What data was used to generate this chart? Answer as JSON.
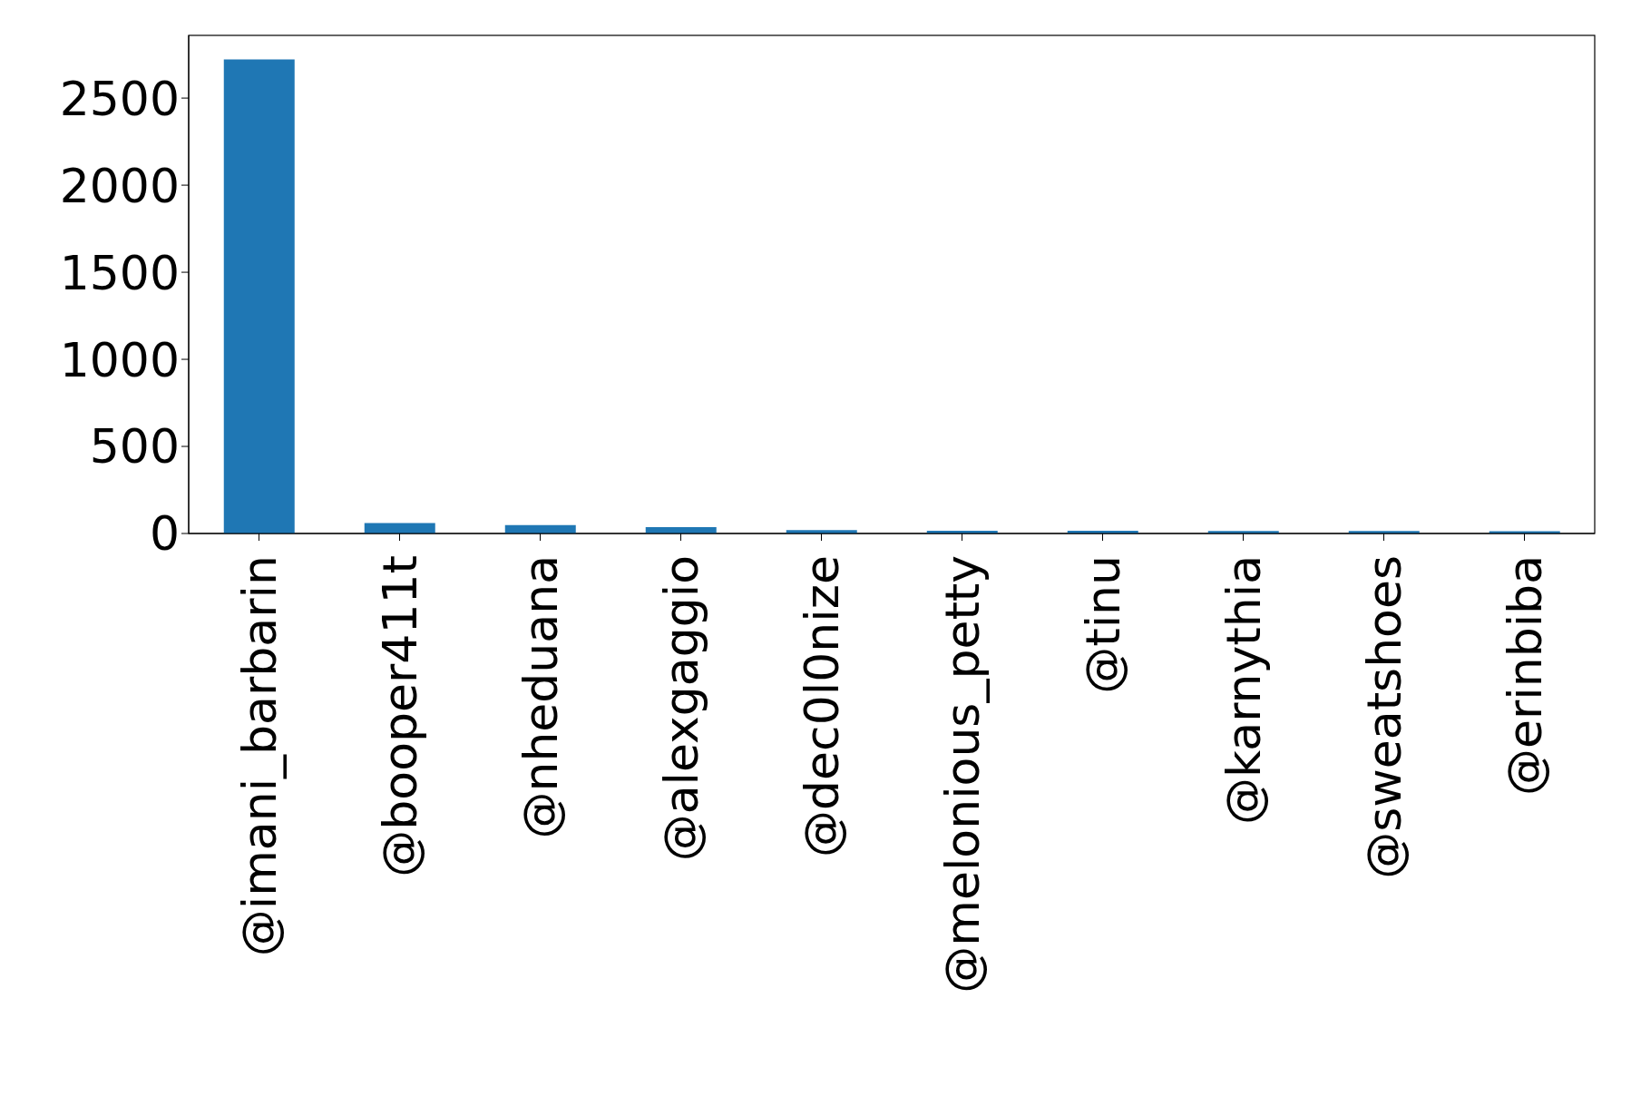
{
  "chart_data": {
    "type": "bar",
    "categories": [
      "@imani_barbarin",
      "@booper411t",
      "@nheduana",
      "@alexgaggio",
      "@dec0l0nize",
      "@melonious_petty",
      "@tinu",
      "@karnythia",
      "@sweatshoes",
      "@erinbiba"
    ],
    "values": [
      2722,
      60,
      48,
      37,
      20,
      16,
      15,
      14,
      14,
      13
    ],
    "color": "#1f77b4",
    "ylim": [
      0,
      2860
    ],
    "yticks": [
      0,
      500,
      1000,
      1500,
      2000,
      2500
    ],
    "grid": false,
    "legend": false
  }
}
